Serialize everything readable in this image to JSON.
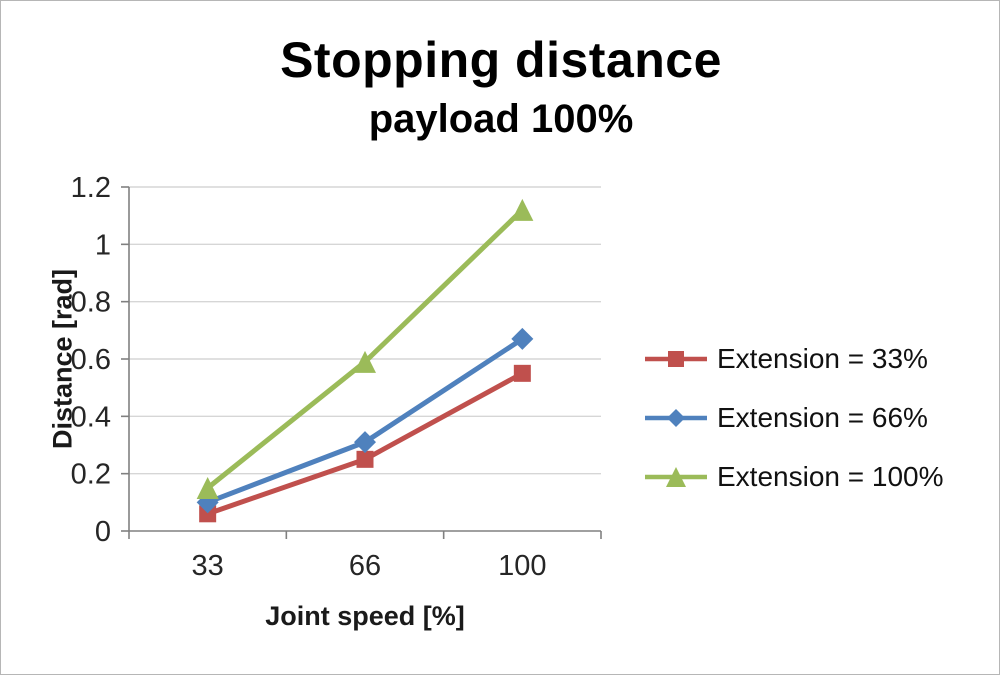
{
  "title": "Stopping distance",
  "subtitle": "payload 100%",
  "chart_data": {
    "type": "line",
    "categories": [
      "33",
      "66",
      "100"
    ],
    "series": [
      {
        "name": "Extension = 33%",
        "marker": "square",
        "color": "#C0504D",
        "values": [
          0.06,
          0.25,
          0.55
        ]
      },
      {
        "name": "Extension = 66%",
        "marker": "diamond",
        "color": "#4F81BD",
        "values": [
          0.1,
          0.31,
          0.67
        ]
      },
      {
        "name": "Extension = 100%",
        "marker": "triangle",
        "color": "#9BBB59",
        "values": [
          0.15,
          0.59,
          1.12
        ]
      }
    ],
    "xlabel": "Joint speed [%]",
    "ylabel": "Distance [rad]",
    "ylim": [
      0,
      1.2
    ],
    "ytick_step": 0.2,
    "yticks": [
      "0",
      "0.2",
      "0.4",
      "0.6",
      "0.8",
      "1",
      "1.2"
    ],
    "grid": true,
    "legend_position": "right"
  },
  "colors": {
    "grid": "#d6d6d6",
    "axis": "#808080",
    "text": "#262626",
    "border": "#b6b6b6"
  }
}
